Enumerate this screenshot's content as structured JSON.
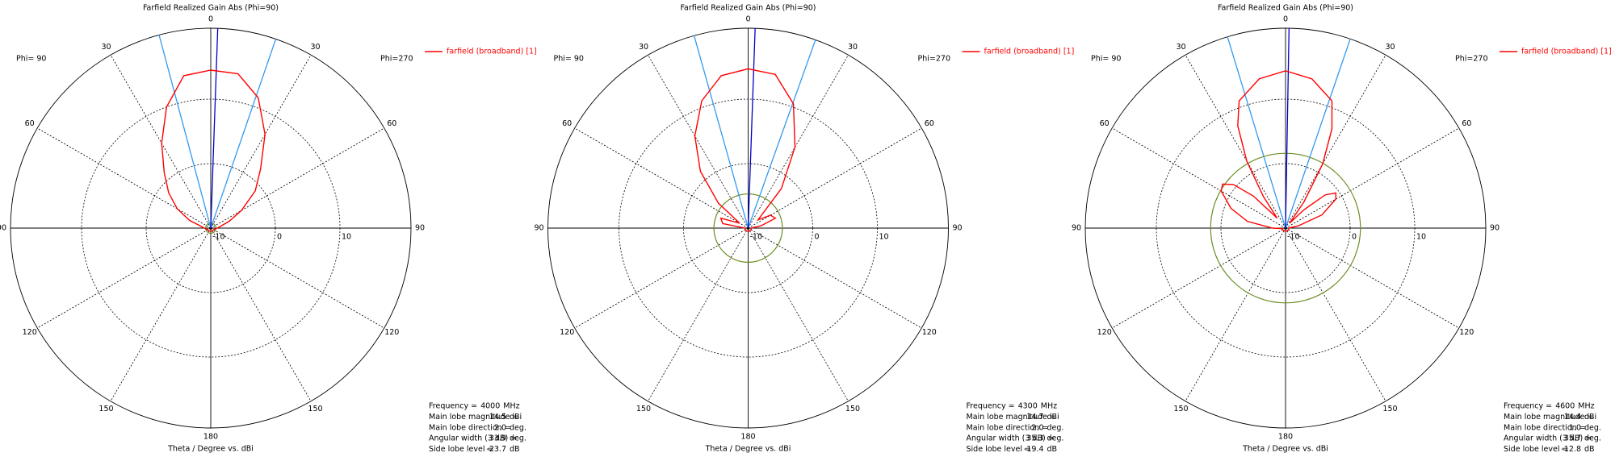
{
  "chart_data": [
    {
      "type": "polar",
      "title": "Farfield Realized Gain Abs (Phi=90)",
      "x_label": "Theta / Degree vs. dBi",
      "left_label": "Phi= 90",
      "right_label": "Phi=270",
      "rlim": [
        -10,
        21
      ],
      "rticks": [
        -10,
        0,
        10
      ],
      "theta_ticks": [
        {
          "value": -150,
          "label": "150"
        },
        {
          "value": -120,
          "label": "120"
        },
        {
          "value": -90,
          "label": "90"
        },
        {
          "value": -60,
          "label": "60"
        },
        {
          "value": -30,
          "label": "30"
        },
        0,
        30,
        60,
        90,
        120,
        150,
        180
      ],
      "main_lobe_color": "#0000c8",
      "beamwidth_color": "#3399ee",
      "side_lobe_color": "#6b8e23",
      "series": [
        {
          "name": "farfield (broadband) [1]",
          "color": "#ff0000",
          "x": [
            -180,
            -150,
            -120,
            -100,
            -90,
            -80,
            -70,
            -60,
            -50,
            -40,
            -30,
            -20,
            -10,
            0,
            10,
            20,
            30,
            40,
            50,
            60,
            70,
            80,
            90,
            100,
            120,
            150,
            180
          ],
          "values": [
            -9.5,
            -9.5,
            -9.5,
            -9.3,
            -9,
            -8.5,
            -6.5,
            -4,
            -1.5,
            1.2,
            5.2,
            10,
            14,
            14.5,
            14.3,
            11.5,
            6.8,
            2,
            -1,
            -4.5,
            -7,
            -8.5,
            -9,
            -9.3,
            -9.5,
            -9.5,
            -9.5
          ]
        }
      ],
      "info": [
        {
          "label": "Frequency =",
          "value": 4000,
          "unit": "MHz"
        },
        {
          "label": "Main lobe magnitude =",
          "value": 14.5,
          "unit": "dBi"
        },
        {
          "label": "Main lobe direction =",
          "value": 2,
          "value_label": "2.0",
          "unit": "deg."
        },
        {
          "label": "Angular width (3 dB) =",
          "value": 33.9,
          "unit": "deg."
        },
        {
          "label": "Side lobe level =",
          "value": -23.7,
          "unit": "dB"
        }
      ]
    },
    {
      "type": "polar",
      "title": "Farfield Realized Gain Abs (Phi=90)",
      "x_label": "Theta / Degree vs. dBi",
      "left_label": "Phi= 90",
      "right_label": "Phi=270",
      "rlim": [
        -10,
        21
      ],
      "rticks": [
        -10,
        0,
        10
      ],
      "theta_ticks": [
        {
          "value": -150,
          "label": "150"
        },
        {
          "value": -120,
          "label": "120"
        },
        {
          "value": -90,
          "label": "90"
        },
        {
          "value": -60,
          "label": "60"
        },
        {
          "value": -30,
          "label": "30"
        },
        0,
        30,
        60,
        90,
        120,
        150,
        180
      ],
      "main_lobe_color": "#0000c8",
      "beamwidth_color": "#3399ee",
      "side_lobe_color": "#6b8e23",
      "series": [
        {
          "name": "farfield (broadband) [1]",
          "color": "#ff0000",
          "x": [
            -180,
            -150,
            -120,
            -100,
            -90,
            -80,
            -70,
            -60,
            -50,
            -40,
            -30,
            -20,
            -10,
            0,
            10,
            20,
            30,
            40,
            50,
            60,
            70,
            80,
            90,
            100,
            120,
            150,
            180
          ],
          "values": [
            -9.5,
            -9.5,
            -9.5,
            -9.5,
            -9.5,
            -6,
            -5.5,
            -8.5,
            -4,
            1.5,
            6.5,
            11,
            14,
            14.7,
            14.2,
            10.5,
            4.5,
            -2,
            -8,
            -6,
            -5.5,
            -8,
            -9.5,
            -9.5,
            -9.5,
            -9.5,
            -9.5
          ]
        }
      ],
      "info": [
        {
          "label": "Frequency =",
          "value": 4300,
          "unit": "MHz"
        },
        {
          "label": "Main lobe magnitude =",
          "value": 14.7,
          "unit": "dBi"
        },
        {
          "label": "Main lobe direction =",
          "value": 2,
          "value_label": "2.0",
          "unit": "deg."
        },
        {
          "label": "Angular width (3 dB) =",
          "value": 35.3,
          "unit": "deg."
        },
        {
          "label": "Side lobe level =",
          "value": -19.4,
          "unit": "dB"
        }
      ]
    },
    {
      "type": "polar",
      "title": "Farfield Realized Gain Abs (Phi=90)",
      "x_label": "Theta / Degree vs. dBi",
      "left_label": "Phi= 90",
      "right_label": "Phi=270",
      "rlim": [
        -10,
        21
      ],
      "rticks": [
        -10,
        0,
        10
      ],
      "theta_ticks": [
        {
          "value": -150,
          "label": "150"
        },
        {
          "value": -120,
          "label": "120"
        },
        {
          "value": -90,
          "label": "90"
        },
        {
          "value": -60,
          "label": "60"
        },
        {
          "value": -30,
          "label": "30"
        },
        0,
        30,
        60,
        90,
        120,
        150,
        180
      ],
      "main_lobe_color": "#0000c8",
      "beamwidth_color": "#3399ee",
      "side_lobe_color": "#6b8e23",
      "series": [
        {
          "name": "farfield (broadband) [1]",
          "color": "#ff0000",
          "x": [
            -180,
            -150,
            -120,
            -100,
            -90,
            -80,
            -70,
            -60,
            -55,
            -50,
            -45,
            -40,
            -35,
            -30,
            -25,
            -20,
            -10,
            0,
            10,
            20,
            25,
            30,
            35,
            40,
            45,
            50,
            55,
            60,
            70,
            80,
            90,
            100,
            120,
            150,
            180
          ],
          "values": [
            -9.5,
            -9.5,
            -9.5,
            -9.5,
            -8,
            -4,
            -1,
            1.5,
            1.9,
            0.5,
            -3,
            -8,
            -4,
            2,
            7.5,
            11,
            13.5,
            14.4,
            13.5,
            11,
            7,
            1.5,
            -5,
            -9,
            -6,
            -2,
            -0.5,
            -1,
            -4,
            -8,
            -9.5,
            -9.5,
            -9.5,
            -9.5,
            -9.5
          ]
        }
      ],
      "info": [
        {
          "label": "Frequency =",
          "value": 4600,
          "unit": "MHz"
        },
        {
          "label": "Main lobe magnitude =",
          "value": 14.4,
          "unit": "dBi"
        },
        {
          "label": "Main lobe direction =",
          "value": 1,
          "value_label": "1.0",
          "unit": "deg."
        },
        {
          "label": "Angular width (3 dB) =",
          "value": 35.7,
          "unit": "deg."
        },
        {
          "label": "Side lobe level =",
          "value": -12.8,
          "unit": "dB"
        }
      ]
    }
  ]
}
